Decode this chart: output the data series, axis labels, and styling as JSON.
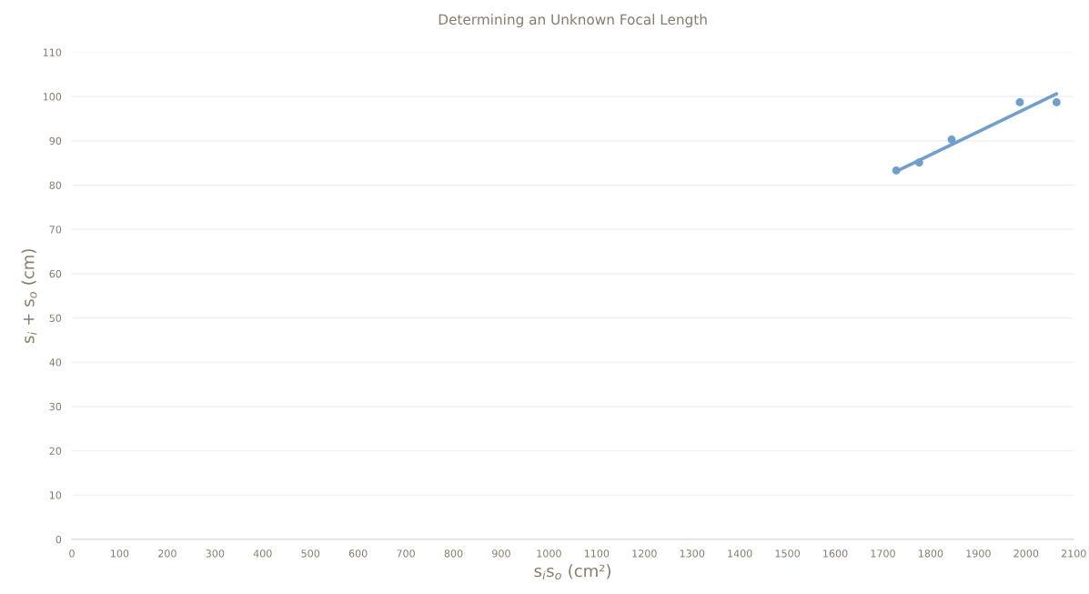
{
  "chart_data": {
    "type": "scatter",
    "title": "Determining an Unknown Focal Length",
    "xlabel": "s$_{i}$s$_{o}$ (cm²)",
    "ylabel": "s$_{i}$ + s$_{o}$ (cm)",
    "series": [
      {
        "color": "#6f9fd0",
        "marker": "circle",
        "x": [
          1728,
          1776,
          1844,
          1987,
          2064
        ],
        "values": [
          83.3,
          85.1,
          90.3,
          98.7,
          98.7
        ]
      },
      {
        "type": "line",
        "color": "#6f9fd0",
        "marker": "none",
        "line_style": "solid",
        "x": [
          1728,
          2064
        ],
        "values": [
          83.1,
          100.6
        ]
      }
    ],
    "xlim": [
      0,
      2100
    ],
    "xticks": [
      0,
      100,
      200,
      300,
      400,
      500,
      600,
      700,
      800,
      900,
      1000,
      1100,
      1200,
      1300,
      1400,
      1500,
      1600,
      1700,
      1800,
      1900,
      2000,
      2100
    ],
    "ylim": [
      0,
      110
    ],
    "yticks": [
      0,
      10,
      20,
      30,
      40,
      50,
      60,
      70,
      80,
      90,
      100,
      110
    ],
    "grid": "y",
    "legend": false
  }
}
